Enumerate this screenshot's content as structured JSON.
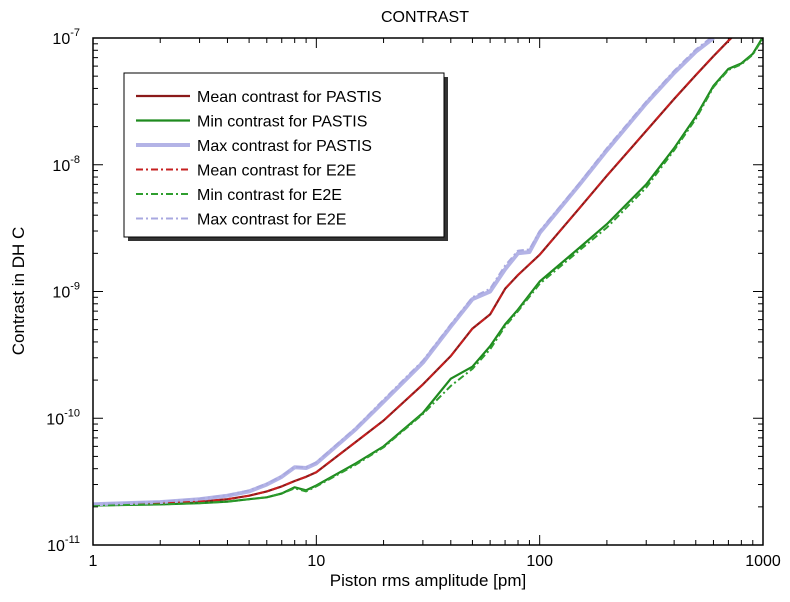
{
  "chart_data": {
    "type": "line",
    "title": "CONTRAST",
    "xlabel": "Piston rms amplitude [pm]",
    "ylabel": "Contrast in DH C",
    "xscale": "log",
    "yscale": "log",
    "xlim": [
      1,
      1000
    ],
    "ylim": [
      1e-11,
      1e-07
    ],
    "grid": false,
    "legend_position": "top-left",
    "x_ticks": [
      {
        "value": 1,
        "label": "1"
      },
      {
        "value": 10,
        "label": "10"
      },
      {
        "value": 100,
        "label": "100"
      },
      {
        "value": 1000,
        "label": "1000"
      }
    ],
    "y_ticks": [
      {
        "value": 1e-11,
        "base": "10",
        "exp": "-11"
      },
      {
        "value": 1e-10,
        "base": "10",
        "exp": "-10"
      },
      {
        "value": 1e-09,
        "base": "10",
        "exp": "-9"
      },
      {
        "value": 1e-08,
        "base": "10",
        "exp": "-8"
      },
      {
        "value": 1e-07,
        "base": "10",
        "exp": "-7"
      }
    ],
    "series": [
      {
        "name": "Mean contrast for PASTIS",
        "color": "#8b1a1a",
        "style": "solid",
        "x": [
          1,
          2,
          3,
          4,
          5,
          6,
          7,
          8,
          9,
          10,
          15,
          20,
          30,
          40,
          50,
          60,
          70,
          80,
          100,
          150,
          200,
          300,
          400,
          500,
          600,
          700,
          800
        ],
        "y": [
          2.07e-11,
          2.13e-11,
          2.2e-11,
          2.3e-11,
          2.45e-11,
          2.65e-11,
          2.9e-11,
          3.2e-11,
          3.45e-11,
          3.75e-11,
          6.5e-11,
          9.6e-11,
          1.85e-10,
          3.1e-10,
          5.1e-10,
          6.6e-10,
          1.05e-09,
          1.35e-09,
          1.95e-09,
          4.5e-09,
          8.2e-09,
          1.85e-08,
          3.3e-08,
          5.1e-08,
          7.2e-08,
          9.5e-08,
          1.2e-07
        ]
      },
      {
        "name": "Min contrast for PASTIS",
        "color": "#1f8a1f",
        "style": "solid",
        "x": [
          1,
          2,
          3,
          4,
          5,
          6,
          7,
          8,
          9,
          10,
          15,
          20,
          30,
          40,
          50,
          60,
          70,
          80,
          100,
          150,
          200,
          300,
          400,
          500,
          600,
          700,
          800,
          900,
          1000
        ],
        "y": [
          2.05e-11,
          2.09e-11,
          2.14e-11,
          2.2e-11,
          2.3e-11,
          2.38e-11,
          2.55e-11,
          2.85e-11,
          2.7e-11,
          2.95e-11,
          4.4e-11,
          6e-11,
          1.1e-10,
          2.05e-10,
          2.55e-10,
          3.7e-10,
          5.5e-10,
          7.2e-10,
          1.2e-09,
          2.2e-09,
          3.4e-09,
          7e-09,
          1.35e-08,
          2.4e-08,
          4.2e-08,
          5.7e-08,
          6.3e-08,
          7.5e-08,
          1.02e-07
        ]
      },
      {
        "name": "Max contrast for PASTIS",
        "color": "#b3b3e6",
        "style": "solid",
        "x": [
          1,
          2,
          3,
          4,
          5,
          6,
          7,
          8,
          9,
          10,
          15,
          20,
          30,
          40,
          50,
          60,
          70,
          80,
          90,
          100,
          150,
          200,
          300,
          400,
          500,
          600
        ],
        "y": [
          2.1e-11,
          2.18e-11,
          2.3e-11,
          2.45e-11,
          2.65e-11,
          3e-11,
          3.45e-11,
          4.1e-11,
          4.05e-11,
          4.4e-11,
          8.2e-11,
          1.35e-10,
          2.75e-10,
          5.3e-10,
          8.7e-10,
          1e-09,
          1.5e-09,
          2e-09,
          2.05e-09,
          2.9e-09,
          6.9e-09,
          1.3e-08,
          3.05e-08,
          5.3e-08,
          7.8e-08,
          1e-07
        ]
      },
      {
        "name": "Mean contrast for E2E",
        "color": "#c62020",
        "style": "dashdot",
        "x": [
          1,
          2,
          3,
          4,
          5,
          6,
          7,
          8,
          9,
          10,
          15,
          20,
          30,
          40,
          50,
          60,
          70,
          80,
          100,
          150,
          200,
          300,
          400,
          500,
          600,
          700,
          800
        ],
        "y": [
          2.07e-11,
          2.13e-11,
          2.2e-11,
          2.3e-11,
          2.45e-11,
          2.65e-11,
          2.9e-11,
          3.2e-11,
          3.45e-11,
          3.75e-11,
          6.5e-11,
          9.6e-11,
          1.85e-10,
          3.1e-10,
          5.1e-10,
          6.6e-10,
          1.05e-09,
          1.35e-09,
          1.95e-09,
          4.5e-09,
          8.2e-09,
          1.85e-08,
          3.3e-08,
          5.1e-08,
          7.2e-08,
          9.5e-08,
          1.2e-07
        ]
      },
      {
        "name": "Min contrast for E2E",
        "color": "#2e9e2e",
        "style": "dashdot",
        "x": [
          1,
          2,
          3,
          4,
          5,
          6,
          7,
          8,
          9,
          10,
          15,
          20,
          30,
          40,
          50,
          60,
          70,
          80,
          100,
          150,
          200,
          300,
          400,
          500,
          600,
          700,
          800,
          900,
          1000
        ],
        "y": [
          2.05e-11,
          2.09e-11,
          2.14e-11,
          2.2e-11,
          2.3e-11,
          2.38e-11,
          2.55e-11,
          2.8e-11,
          2.65e-11,
          2.9e-11,
          4.3e-11,
          5.9e-11,
          1.08e-10,
          1.8e-10,
          2.45e-10,
          3.5e-10,
          5.3e-10,
          7e-10,
          1.15e-09,
          2.1e-09,
          3.2e-09,
          6.6e-09,
          1.3e-08,
          2.3e-08,
          4.1e-08,
          5.6e-08,
          6.2e-08,
          7.4e-08,
          1e-07
        ]
      },
      {
        "name": "Max contrast for E2E",
        "color": "#a8a8e0",
        "style": "dashdot",
        "x": [
          1,
          2,
          3,
          4,
          5,
          6,
          7,
          8,
          9,
          10,
          15,
          20,
          30,
          40,
          50,
          60,
          70,
          80,
          90,
          100,
          150,
          200,
          300,
          400,
          500,
          600
        ],
        "y": [
          2.1e-11,
          2.19e-11,
          2.32e-11,
          2.48e-11,
          2.7e-11,
          3.05e-11,
          3.5e-11,
          4.15e-11,
          4.1e-11,
          4.5e-11,
          8.4e-11,
          1.4e-10,
          2.85e-10,
          5.5e-10,
          9e-10,
          1.05e-09,
          1.6e-09,
          2.1e-09,
          2.15e-09,
          3e-09,
          7.1e-09,
          1.35e-08,
          3.15e-08,
          5.5e-08,
          8.1e-08,
          1.04e-07
        ]
      }
    ]
  }
}
